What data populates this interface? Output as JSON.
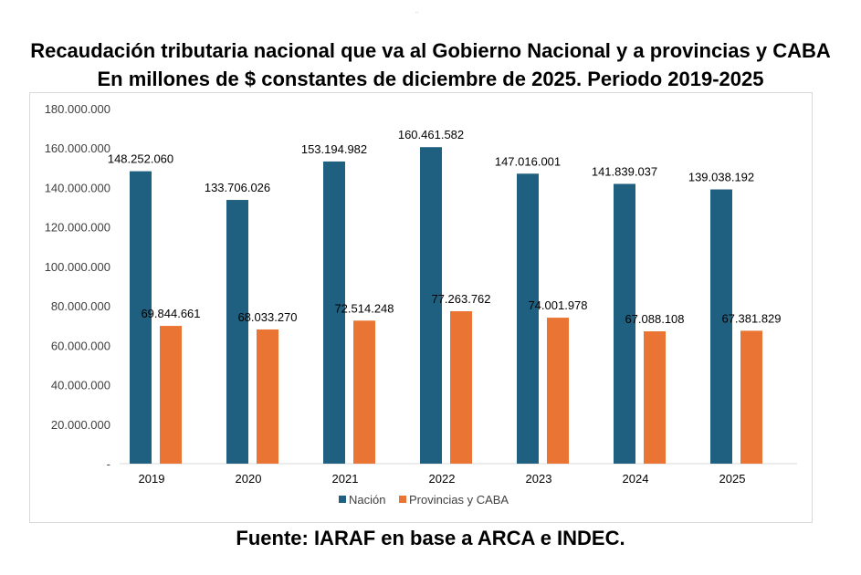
{
  "header": {
    "title_line1": "Recaudación tributaria nacional que va al Gobierno Nacional y a provincias y CABA",
    "title_line2": "En millones de $ constantes de diciembre de 2025. Periodo 2019-2025"
  },
  "footer": {
    "source": "Fuente: IARAF en base a ARCA e INDEC."
  },
  "colors": {
    "nacion": "#1f5f7f",
    "provincias": "#ea7433",
    "axis_text": "#404040",
    "axis_line": "#d9d9d9"
  },
  "chart_data": {
    "type": "bar",
    "title": "Recaudación tributaria nacional que va al Gobierno Nacional y a provincias y CABA",
    "subtitle": "En millones de $ constantes de diciembre de 2025. Periodo 2019-2025",
    "categories": [
      "2019",
      "2020",
      "2021",
      "2022",
      "2023",
      "2024",
      "2025"
    ],
    "series": [
      {
        "name": "Nación",
        "values": [
          148252060,
          133706026,
          153194982,
          160461582,
          147016001,
          141839037,
          139038192
        ],
        "labels": [
          "148.252.060",
          "133.706.026",
          "153.194.982",
          "160.461.582",
          "147.016.001",
          "141.839.037",
          "139.038.192"
        ]
      },
      {
        "name": "Provincias y CABA",
        "values": [
          69844661,
          68033270,
          72514248,
          77263762,
          74001978,
          67088108,
          67381829
        ],
        "labels": [
          "69.844.661",
          "68.033.270",
          "72.514.248",
          "77.263.762",
          "74.001.978",
          "67.088.108",
          "67.381.829"
        ]
      }
    ],
    "ylim": [
      0,
      180000000
    ],
    "yticks": [
      0,
      20000000,
      40000000,
      60000000,
      80000000,
      100000000,
      120000000,
      140000000,
      160000000,
      180000000
    ],
    "ytick_labels": [
      "-",
      "20.000.000",
      "40.000.000",
      "60.000.000",
      "80.000.000",
      "100.000.000",
      "120.000.000",
      "140.000.000",
      "160.000.000",
      "180.000.000"
    ],
    "xlabel": "",
    "ylabel": "",
    "grid": false,
    "legend_position": "bottom"
  }
}
